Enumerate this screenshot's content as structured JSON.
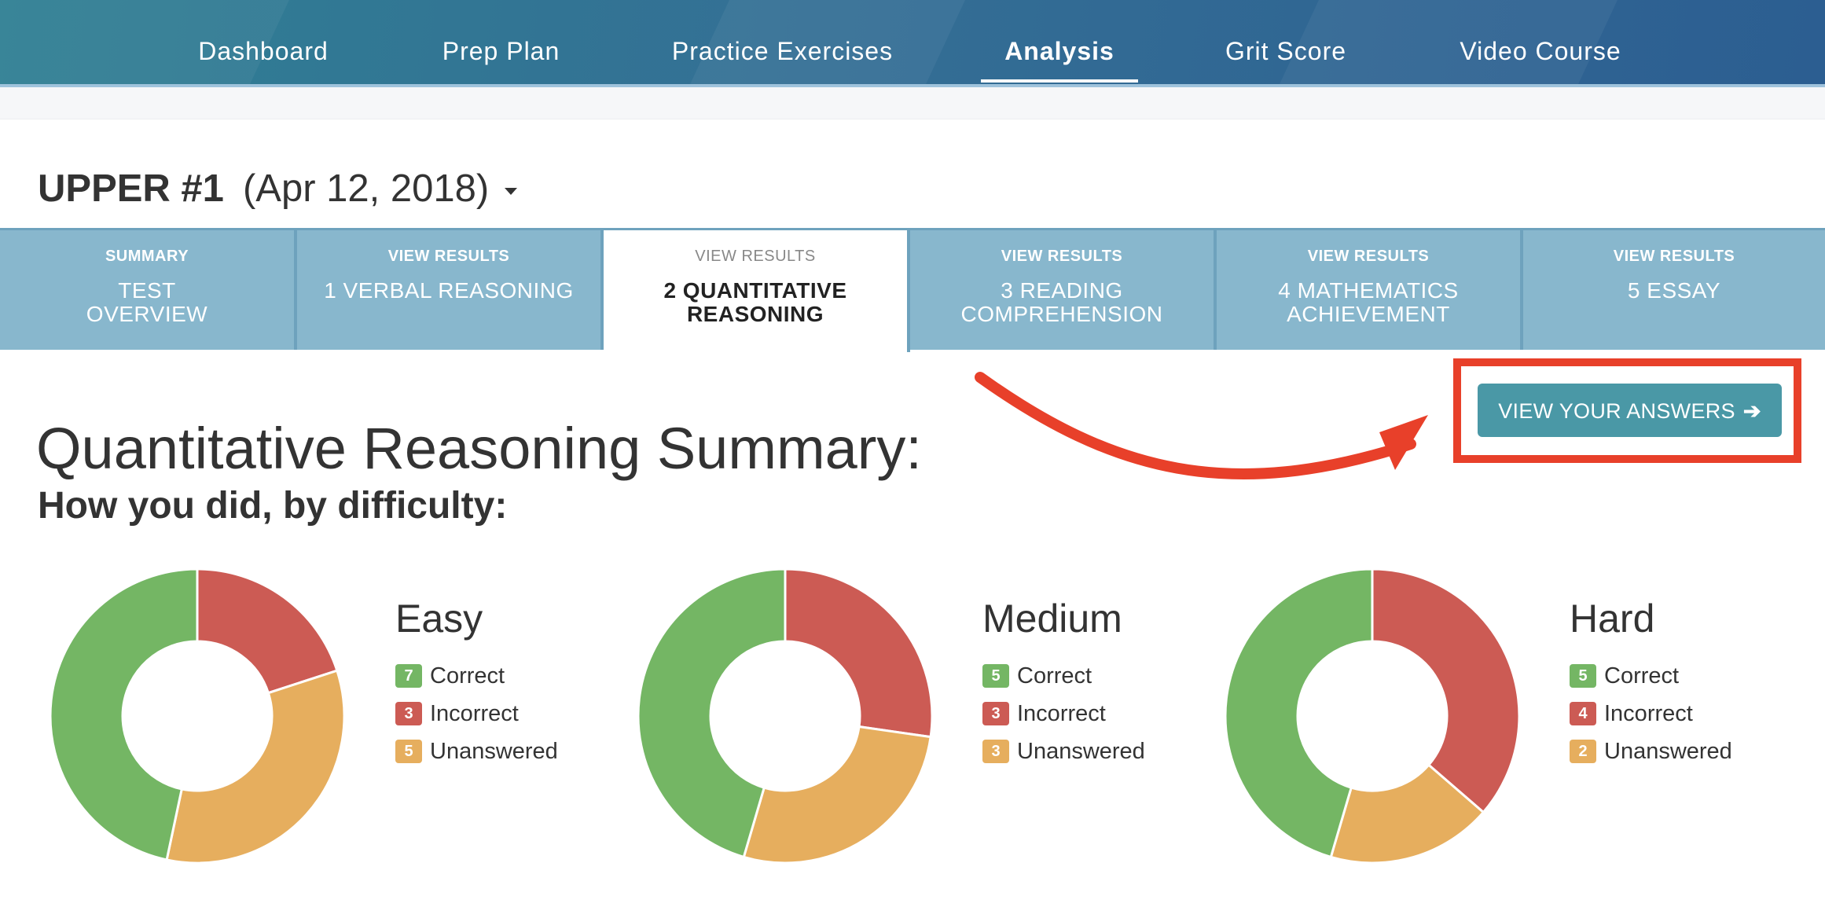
{
  "nav": {
    "items": [
      {
        "label": "Dashboard",
        "active": false
      },
      {
        "label": "Prep Plan",
        "active": false
      },
      {
        "label": "Practice Exercises",
        "active": false
      },
      {
        "label": "Analysis",
        "active": true
      },
      {
        "label": "Grit Score",
        "active": false
      },
      {
        "label": "Video Course",
        "active": false
      }
    ]
  },
  "test": {
    "name": "UPPER #1",
    "date": "(Apr 12, 2018)"
  },
  "tabs": [
    {
      "kicker": "SUMMARY",
      "label": "TEST OVERVIEW",
      "active": false
    },
    {
      "kicker": "VIEW RESULTS",
      "label": "1 VERBAL REASONING",
      "active": false
    },
    {
      "kicker": "VIEW RESULTS",
      "label": "2 QUANTITATIVE REASONING",
      "active": true
    },
    {
      "kicker": "VIEW RESULTS",
      "label": "3 READING COMPREHENSION",
      "active": false
    },
    {
      "kicker": "VIEW RESULTS",
      "label": "4 MATHEMATICS ACHIEVEMENT",
      "active": false
    },
    {
      "kicker": "VIEW RESULTS",
      "label": "5 ESSAY",
      "active": false
    }
  ],
  "main": {
    "title": "Quantitative Reasoning Summary:",
    "view_answers_label": "VIEW YOUR ANSWERS",
    "view_answers_icon": "arrow-right-icon",
    "difficulty_title": "How you did, by difficulty:"
  },
  "colors": {
    "correct": "#74b664",
    "incorrect": "#cc5b54",
    "unanswered": "#e6ae5e",
    "button": "#4a98a6",
    "highlight": "#e8402a"
  },
  "legend_labels": {
    "correct": "Correct",
    "incorrect": "Incorrect",
    "unanswered": "Unanswered"
  },
  "chart_data": [
    {
      "type": "pie",
      "title": "Easy",
      "categories": [
        "Incorrect",
        "Unanswered",
        "Correct"
      ],
      "values": [
        3,
        5,
        7
      ]
    },
    {
      "type": "pie",
      "title": "Medium",
      "categories": [
        "Incorrect",
        "Unanswered",
        "Correct"
      ],
      "values": [
        3,
        3,
        5
      ]
    },
    {
      "type": "pie",
      "title": "Hard",
      "categories": [
        "Incorrect",
        "Unanswered",
        "Correct"
      ],
      "values": [
        4,
        2,
        5
      ]
    }
  ]
}
